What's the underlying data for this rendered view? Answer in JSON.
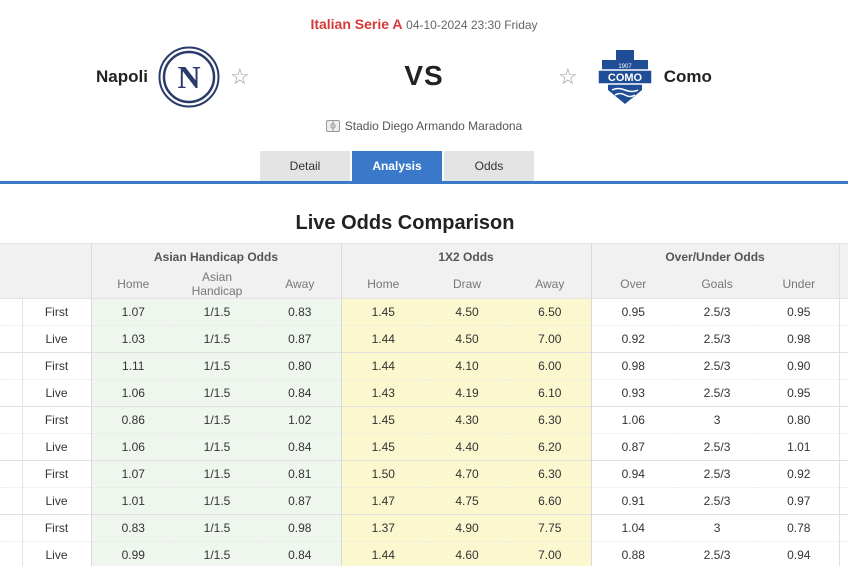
{
  "match": {
    "league": "Italian Serie A",
    "datetime": "04-10-2024 23:30 Friday",
    "vs": "VS",
    "venue": "Stadio Diego Armando Maradona",
    "home": {
      "name": "Napoli",
      "logo_letter": "N"
    },
    "away": {
      "name": "Como",
      "logo_text": "COMO",
      "logo_year": "1907"
    }
  },
  "tabs": [
    {
      "label": "Detail",
      "active": false
    },
    {
      "label": "Analysis",
      "active": true
    },
    {
      "label": "Odds",
      "active": false
    }
  ],
  "section_title": "Live Odds Comparison",
  "table": {
    "groups": [
      "Asian Handicap Odds",
      "1X2 Odds",
      "Over/Under Odds"
    ],
    "sub_headers": [
      "Home",
      "Asian Handicap",
      "Away",
      "Home",
      "Draw",
      "Away",
      "Over",
      "Goals",
      "Under"
    ],
    "rows": [
      {
        "label": "First",
        "cells": [
          "1.07",
          "1/1.5",
          "0.83",
          "1.45",
          "4.50",
          "6.50",
          "0.95",
          "2.5/3",
          "0.95"
        ]
      },
      {
        "label": "Live",
        "cells": [
          "1.03",
          "1/1.5",
          "0.87",
          "1.44",
          "4.50",
          "7.00",
          "0.92",
          "2.5/3",
          "0.98"
        ]
      },
      {
        "label": "First",
        "cells": [
          "1.11",
          "1/1.5",
          "0.80",
          "1.44",
          "4.10",
          "6.00",
          "0.98",
          "2.5/3",
          "0.90"
        ]
      },
      {
        "label": "Live",
        "cells": [
          "1.06",
          "1/1.5",
          "0.84",
          "1.43",
          "4.19",
          "6.10",
          "0.93",
          "2.5/3",
          "0.95"
        ]
      },
      {
        "label": "First",
        "cells": [
          "0.86",
          "1/1.5",
          "1.02",
          "1.45",
          "4.30",
          "6.30",
          "1.06",
          "3",
          "0.80"
        ]
      },
      {
        "label": "Live",
        "cells": [
          "1.06",
          "1/1.5",
          "0.84",
          "1.45",
          "4.40",
          "6.20",
          "0.87",
          "2.5/3",
          "1.01"
        ]
      },
      {
        "label": "First",
        "cells": [
          "1.07",
          "1/1.5",
          "0.81",
          "1.50",
          "4.70",
          "6.30",
          "0.94",
          "2.5/3",
          "0.92"
        ]
      },
      {
        "label": "Live",
        "cells": [
          "1.01",
          "1/1.5",
          "0.87",
          "1.47",
          "4.75",
          "6.60",
          "0.91",
          "2.5/3",
          "0.97"
        ]
      },
      {
        "label": "First",
        "cells": [
          "0.83",
          "1/1.5",
          "0.98",
          "1.37",
          "4.90",
          "7.75",
          "1.04",
          "3",
          "0.78"
        ]
      },
      {
        "label": "Live",
        "cells": [
          "0.99",
          "1/1.5",
          "0.84",
          "1.44",
          "4.60",
          "7.00",
          "0.88",
          "2.5/3",
          "0.94"
        ]
      }
    ]
  },
  "colors": {
    "league": "#d43a3a",
    "accent": "#3a79c9",
    "asian_bg": "#eef6ee",
    "x12_bg": "#fbf7cf"
  },
  "icons": {
    "favorite": "star-outline-icon",
    "venue": "stadium-icon"
  }
}
